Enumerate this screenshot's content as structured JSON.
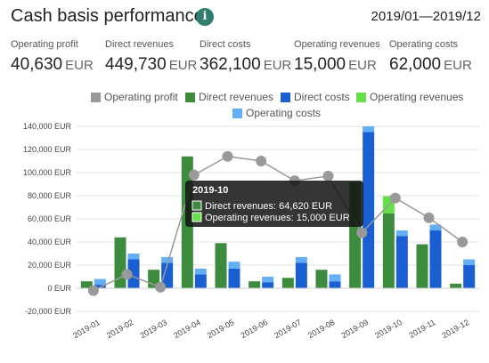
{
  "header": {
    "title": "Cash basis performance",
    "info_icon": "info-icon",
    "date_range": "2019/01—2019/12"
  },
  "kpis": [
    {
      "label": "Operating profit",
      "value": "40,630",
      "unit": "EUR"
    },
    {
      "label": "Direct revenues",
      "value": "449,730",
      "unit": "EUR"
    },
    {
      "label": "Direct costs",
      "value": "362,100",
      "unit": "EUR"
    },
    {
      "label": "Operating revenues",
      "value": "15,000",
      "unit": "EUR"
    },
    {
      "label": "Operating costs",
      "value": "62,000",
      "unit": "EUR"
    }
  ],
  "chart_data": {
    "type": "bar",
    "categories": [
      "2019-01",
      "2019-02",
      "2019-03",
      "2019-04",
      "2019-05",
      "2019-06",
      "2019-07",
      "2019-08",
      "2019-09",
      "2019-10",
      "2019-11",
      "2019-12"
    ],
    "ylim": [
      -20000,
      140000
    ],
    "yticks": [
      -20000,
      0,
      20000,
      40000,
      60000,
      80000,
      100000,
      120000,
      140000
    ],
    "ytick_labels": [
      "-20,000 EUR",
      "0 EUR",
      "20,000 EUR",
      "40,000 EUR",
      "60,000 EUR",
      "80,000 EUR",
      "100,000 EUR",
      "120,000 EUR",
      "140,000 EUR"
    ],
    "grid": true,
    "legend_position": "top",
    "series": [
      {
        "name": "Operating profit",
        "type": "line",
        "color": "#999999",
        "values": [
          -2000,
          12000,
          1000,
          98000,
          114000,
          110000,
          93000,
          97000,
          48000,
          78000,
          61000,
          40000
        ]
      },
      {
        "name": "Direct revenues",
        "type": "bar",
        "stack": "revenue",
        "color": "#3d8b3d",
        "values": [
          6000,
          44000,
          16000,
          114000,
          39000,
          6000,
          9000,
          16000,
          92000,
          64620,
          38000,
          4000
        ]
      },
      {
        "name": "Direct costs",
        "type": "bar",
        "stack": "cost",
        "color": "#1a5fd1",
        "values": [
          3000,
          25000,
          22000,
          12000,
          17000,
          5000,
          22000,
          6000,
          135000,
          45000,
          50000,
          20000
        ]
      },
      {
        "name": "Operating revenues",
        "type": "bar",
        "stack": "revenue",
        "color": "#66e04a",
        "values": [
          0,
          0,
          0,
          0,
          0,
          0,
          0,
          0,
          0,
          15000,
          0,
          0
        ]
      },
      {
        "name": "Operating costs",
        "type": "bar",
        "stack": "cost",
        "color": "#63aef5",
        "values": [
          5000,
          5000,
          5000,
          5000,
          6000,
          5000,
          5000,
          6000,
          5000,
          5000,
          5000,
          5000
        ]
      }
    ],
    "tooltip": {
      "category": "2019-10",
      "title": "2019-10",
      "lines": [
        {
          "series": "Direct revenues",
          "text": "Direct revenues: 64,620 EUR"
        },
        {
          "series": "Operating revenues",
          "text": "Operating revenues: 15,000 EUR"
        }
      ]
    }
  }
}
